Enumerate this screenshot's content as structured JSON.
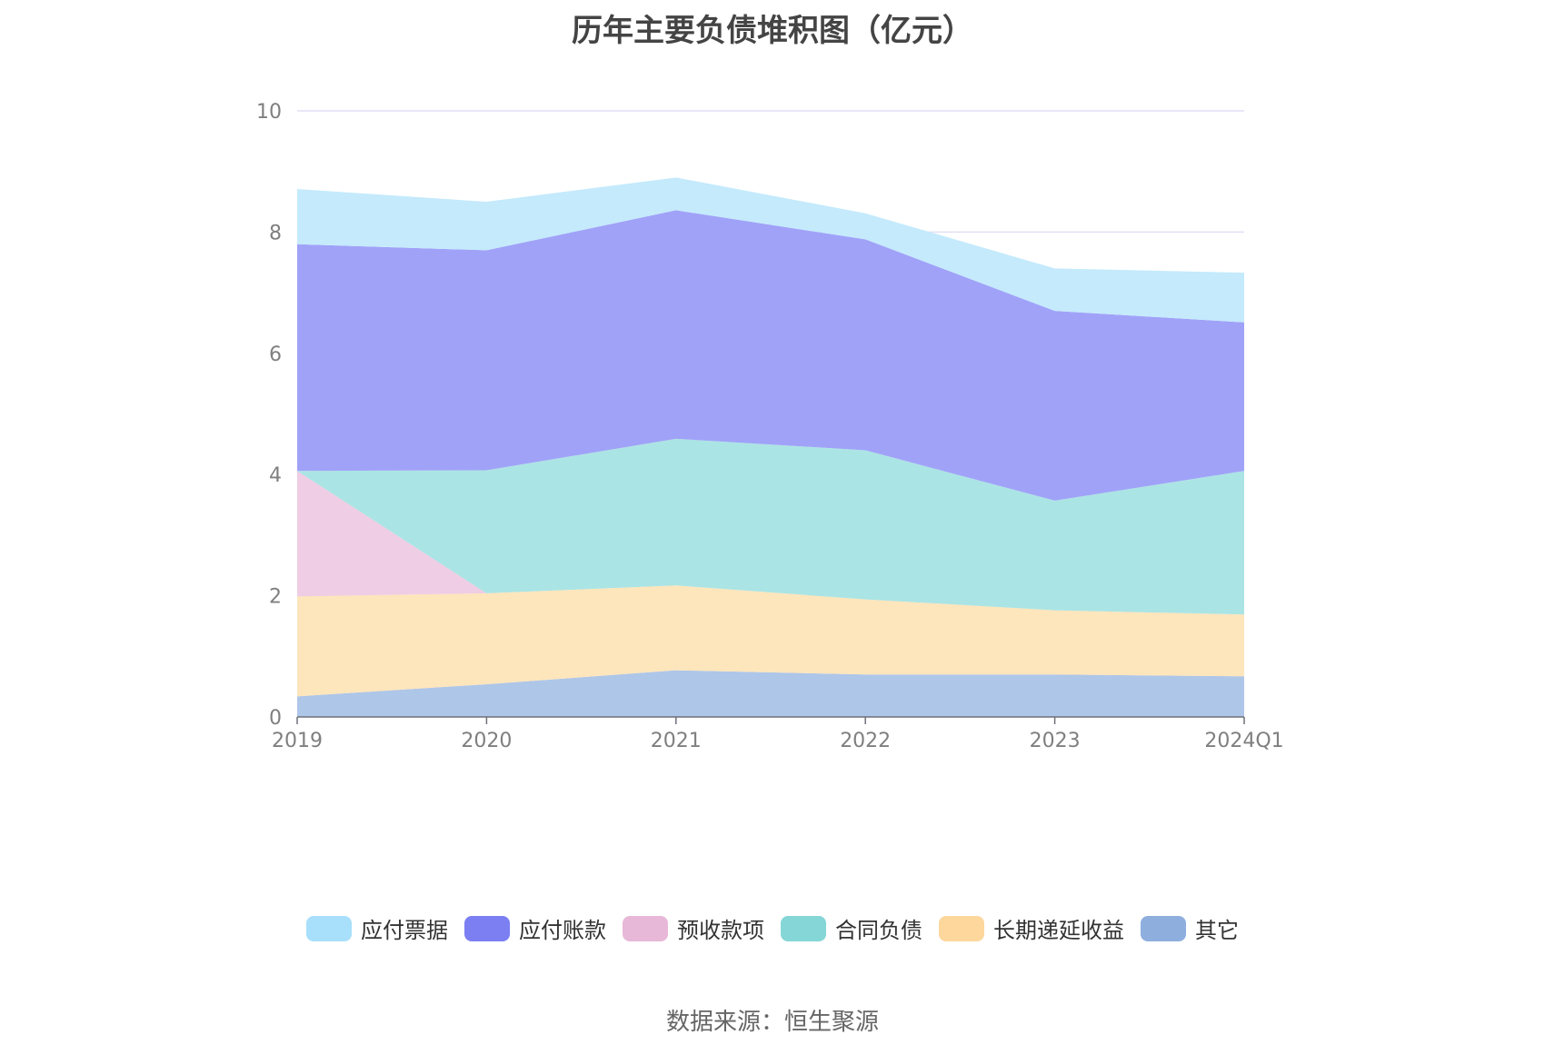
{
  "chart_data": {
    "type": "area",
    "stacked": true,
    "title": "历年主要负债堆积图（亿元）",
    "x": [
      "2019",
      "2020",
      "2021",
      "2022",
      "2023",
      "2024Q1"
    ],
    "ylim": [
      0,
      10
    ],
    "yticks": [
      "0",
      "2",
      "4",
      "6",
      "8",
      "10"
    ],
    "grid": true,
    "legend_position": "bottom",
    "series": [
      {
        "name": "其它",
        "color": "#8eaede",
        "area_color": "#aec6e8",
        "values": [
          0.34,
          0.54,
          0.77,
          0.7,
          0.7,
          0.67
        ]
      },
      {
        "name": "长期递延收益",
        "color": "#fdd79c",
        "area_color": "#fde5bc",
        "values": [
          1.65,
          1.5,
          1.4,
          1.24,
          1.06,
          1.02
        ]
      },
      {
        "name": "预收款项",
        "color": "#e8b8d8",
        "area_color": "#efcde4",
        "values": [
          2.07,
          0.0,
          0.0,
          0.0,
          0.0,
          0.0
        ]
      },
      {
        "name": "合同负债",
        "color": "#85d6d6",
        "area_color": "#abe4e4",
        "values": [
          0.0,
          2.03,
          2.42,
          2.46,
          1.81,
          2.37
        ]
      },
      {
        "name": "应付账款",
        "color": "#7b7ff2",
        "area_color": "#a0a2f8",
        "values": [
          3.74,
          3.63,
          3.77,
          3.48,
          3.13,
          2.45
        ]
      },
      {
        "name": "应付票据",
        "color": "#a8e0fc",
        "area_color": "#c4eafc",
        "values": [
          0.91,
          0.8,
          0.54,
          0.43,
          0.7,
          0.82
        ]
      }
    ]
  },
  "legend_order": [
    5,
    4,
    2,
    3,
    1,
    0
  ],
  "source_text": "数据来源：恒生聚源"
}
